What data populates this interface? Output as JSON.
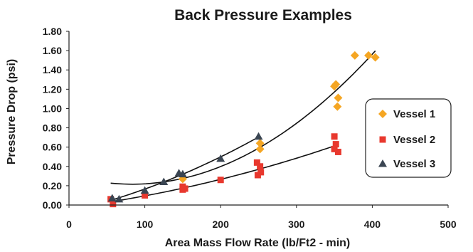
{
  "chart_data": {
    "type": "scatter",
    "title": "Back Pressure Examples",
    "xlabel": "Area Mass Flow Rate (lb/Ft2 - min)",
    "ylabel": "Pressure Drop (psi)",
    "xlim": [
      0,
      500
    ],
    "ylim": [
      0,
      1.8
    ],
    "xticks": [
      "0",
      "100",
      "200",
      "300",
      "400",
      "500"
    ],
    "yticks": [
      "0.00",
      "0.20",
      "0.40",
      "0.60",
      "0.80",
      "1.00",
      "1.20",
      "1.40",
      "1.60",
      "1.80"
    ],
    "grid": false,
    "legend_position": "right",
    "trendlines": "quadratic fit per series",
    "series": [
      {
        "name": "Vessel 1",
        "marker": "diamond",
        "color": "#F5A623",
        "points": [
          [
            150,
            0.27
          ],
          [
            252,
            0.58
          ],
          [
            252,
            0.64
          ],
          [
            350,
            1.23
          ],
          [
            352,
            1.25
          ],
          [
            354,
            1.02
          ],
          [
            355,
            1.11
          ],
          [
            377,
            1.55
          ],
          [
            395,
            1.55
          ],
          [
            404,
            1.53
          ]
        ]
      },
      {
        "name": "Vessel 2",
        "marker": "square",
        "color": "#E8382E",
        "points": [
          [
            55,
            0.06
          ],
          [
            58,
            0.01
          ],
          [
            100,
            0.1
          ],
          [
            150,
            0.19
          ],
          [
            150,
            0.16
          ],
          [
            153,
            0.17
          ],
          [
            200,
            0.26
          ],
          [
            248,
            0.44
          ],
          [
            249,
            0.31
          ],
          [
            252,
            0.4
          ],
          [
            253,
            0.34
          ],
          [
            350,
            0.71
          ],
          [
            350,
            0.58
          ],
          [
            352,
            0.63
          ],
          [
            355,
            0.55
          ]
        ]
      },
      {
        "name": "Vessel 3",
        "marker": "triangle",
        "color": "#3A4552",
        "points": [
          [
            57,
            0.07
          ],
          [
            66,
            0.06
          ],
          [
            100,
            0.15
          ],
          [
            125,
            0.24
          ],
          [
            145,
            0.33
          ],
          [
            150,
            0.32
          ],
          [
            200,
            0.48
          ],
          [
            250,
            0.71
          ]
        ]
      }
    ]
  }
}
